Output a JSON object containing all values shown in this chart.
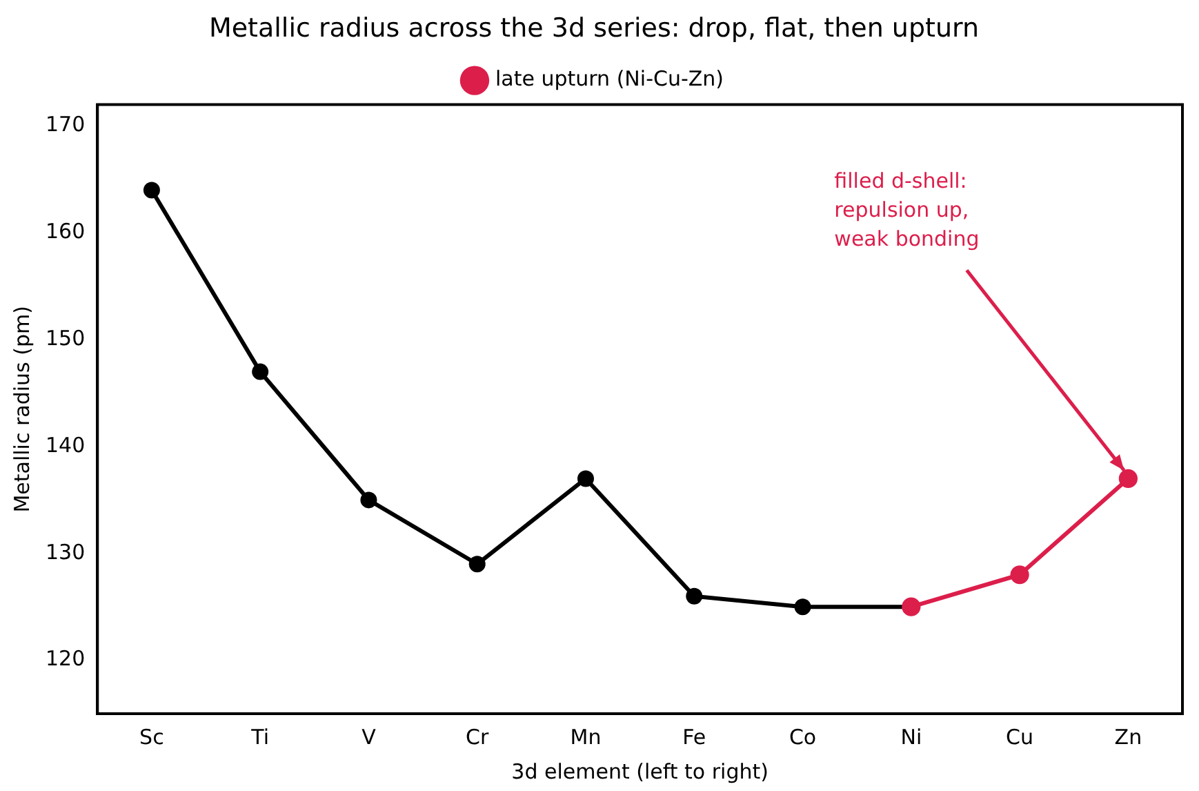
{
  "chart_data": {
    "type": "line",
    "title": "Metallic radius across the 3d series: drop, flat, then upturn",
    "xlabel": "3d element (left to right)",
    "ylabel": "Metallic radius (pm)",
    "categories": [
      "Sc",
      "Ti",
      "V",
      "Cr",
      "Mn",
      "Fe",
      "Co",
      "Ni",
      "Cu",
      "Zn"
    ],
    "series": [
      {
        "color": "#000000",
        "values": [
          164,
          147,
          135,
          129,
          137,
          126,
          125,
          125,
          null,
          null
        ]
      },
      {
        "name": "late upturn (Ni-Cu-Zn)",
        "color": "#dc1e4b",
        "values": [
          null,
          null,
          null,
          null,
          null,
          null,
          null,
          125,
          128,
          137
        ]
      }
    ],
    "ylim": [
      115,
      172
    ],
    "yticks": [
      120,
      130,
      140,
      150,
      160,
      170
    ],
    "grid": false,
    "legend": "top",
    "marker": "circle",
    "line_style": "solid",
    "annotations": [
      {
        "text": "filled d-shell:\nrepulsion up,\nweak bonding",
        "x": "Zn",
        "y": 137
      }
    ]
  }
}
